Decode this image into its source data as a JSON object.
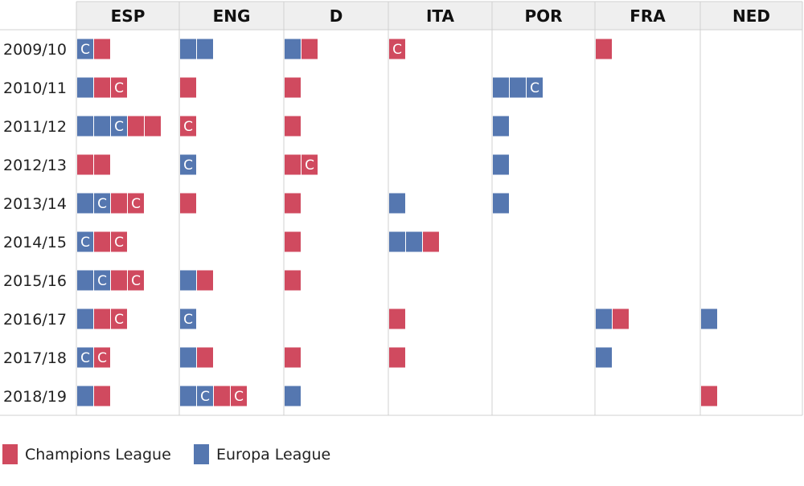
{
  "chart_data": {
    "type": "table",
    "columns": [
      "ESP",
      "ENG",
      "D",
      "ITA",
      "POR",
      "FRA",
      "NED"
    ],
    "rows": [
      "2009/10",
      "2010/11",
      "2011/12",
      "2012/13",
      "2013/14",
      "2014/15",
      "2015/16",
      "2016/17",
      "2017/18",
      "2018/19"
    ],
    "cells": [
      [
        [
          "EL:C",
          "CL"
        ],
        [
          "EL",
          "EL"
        ],
        [
          "EL",
          "CL"
        ],
        [
          "CL:C"
        ],
        [],
        [
          "CL"
        ],
        []
      ],
      [
        [
          "EL",
          "CL",
          "CL:C"
        ],
        [
          "CL"
        ],
        [
          "CL"
        ],
        [],
        [
          "EL",
          "EL",
          "EL:C"
        ],
        [],
        []
      ],
      [
        [
          "EL",
          "EL",
          "EL:C",
          "CL",
          "CL"
        ],
        [
          "CL:C"
        ],
        [
          "CL"
        ],
        [],
        [
          "EL"
        ],
        [],
        []
      ],
      [
        [
          "CL",
          "CL"
        ],
        [
          "EL:C"
        ],
        [
          "CL",
          "CL:C"
        ],
        [],
        [
          "EL"
        ],
        [],
        []
      ],
      [
        [
          "EL",
          "EL:C",
          "CL",
          "CL:C"
        ],
        [
          "CL"
        ],
        [
          "CL"
        ],
        [
          "EL"
        ],
        [
          "EL"
        ],
        [],
        []
      ],
      [
        [
          "EL:C",
          "CL",
          "CL:C"
        ],
        [],
        [
          "CL"
        ],
        [
          "EL",
          "EL",
          "CL"
        ],
        [],
        [],
        []
      ],
      [
        [
          "EL",
          "EL:C",
          "CL",
          "CL:C"
        ],
        [
          "EL",
          "CL"
        ],
        [
          "CL"
        ],
        [],
        [],
        [],
        []
      ],
      [
        [
          "EL",
          "CL",
          "CL:C"
        ],
        [
          "EL:C"
        ],
        [],
        [
          "CL"
        ],
        [],
        [
          "EL",
          "CL"
        ],
        [
          "EL"
        ]
      ],
      [
        [
          "EL:C",
          "CL:C"
        ],
        [
          "EL",
          "CL"
        ],
        [
          "CL"
        ],
        [
          "CL"
        ],
        [],
        [
          "EL"
        ],
        []
      ],
      [
        [
          "EL",
          "CL"
        ],
        [
          "EL",
          "EL:C",
          "CL",
          "CL:C"
        ],
        [
          "EL"
        ],
        [],
        [],
        [],
        [
          "CL"
        ]
      ]
    ],
    "champion_marker": "C",
    "legend": [
      {
        "key": "CL",
        "label": "Champions League",
        "color": "#d04a5f"
      },
      {
        "key": "EL",
        "label": "Europa League",
        "color": "#5577b0"
      }
    ],
    "legend_position": "bottom-left",
    "colors": {
      "CL": "#d04a5f",
      "EL": "#5577b0",
      "header_bg": "#efefef",
      "grid": "#d0d0d0",
      "marker_text": "#ffffff"
    }
  }
}
